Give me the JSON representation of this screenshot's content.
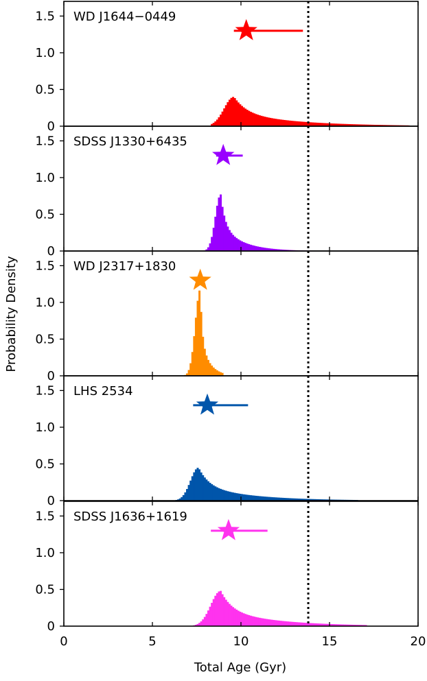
{
  "chart_data": {
    "type": "histogram",
    "xlabel": "Total Age (Gyr)",
    "ylabel": "Probability Density",
    "xlim": [
      0,
      20
    ],
    "ylim": [
      0,
      1.7
    ],
    "x_ticks": [
      0,
      5,
      10,
      15,
      20
    ],
    "y_ticks": [
      0,
      0.5,
      1.0,
      1.5
    ],
    "y_tick_labels": [
      "0",
      "0.5",
      "1.0",
      "1.5"
    ],
    "reference_line": {
      "x": 13.8,
      "style": "dotted"
    },
    "panels": [
      {
        "label": "WD J1644−0449",
        "color": "#ff0000",
        "star": {
          "x": 10.3,
          "y": 1.3,
          "err_low": 9.6,
          "err_high": 13.5
        },
        "dist": {
          "start": 8.3,
          "peak_x": 9.6,
          "peak_y": 0.4,
          "rise_width": 0.55,
          "tail_scale": 1.6,
          "end": 19.5
        }
      },
      {
        "label": "SDSS J1330+6435",
        "color": "#9900ff",
        "star": {
          "x": 9.0,
          "y": 1.3,
          "err_low": 8.6,
          "err_high": 10.1
        },
        "dist": {
          "start": 7.8,
          "peak_x": 8.85,
          "peak_y": 0.77,
          "rise_width": 0.3,
          "tail_scale": 0.55,
          "end": 14.2
        }
      },
      {
        "label": "WD J2317+1830",
        "color": "#ff8c00",
        "star": {
          "x": 7.7,
          "y": 1.3,
          "err_low": 7.45,
          "err_high": 7.95
        },
        "dist": {
          "start": 6.6,
          "peak_x": 7.7,
          "peak_y": 1.18,
          "rise_width": 0.28,
          "tail_scale": 0.22,
          "end": 8.9
        }
      },
      {
        "label": "LHS 2534",
        "color": "#0055aa",
        "star": {
          "x": 8.1,
          "y": 1.3,
          "err_low": 7.3,
          "err_high": 10.4
        },
        "dist": {
          "start": 6.3,
          "peak_x": 7.6,
          "peak_y": 0.45,
          "rise_width": 0.45,
          "tail_scale": 1.3,
          "end": 16.5
        }
      },
      {
        "label": "SDSS J1636+1619",
        "color": "#ff33ee",
        "star": {
          "x": 9.3,
          "y": 1.3,
          "err_low": 8.3,
          "err_high": 11.5
        },
        "dist": {
          "start": 7.3,
          "peak_x": 8.85,
          "peak_y": 0.48,
          "rise_width": 0.55,
          "tail_scale": 1.4,
          "end": 17.0
        }
      }
    ]
  }
}
